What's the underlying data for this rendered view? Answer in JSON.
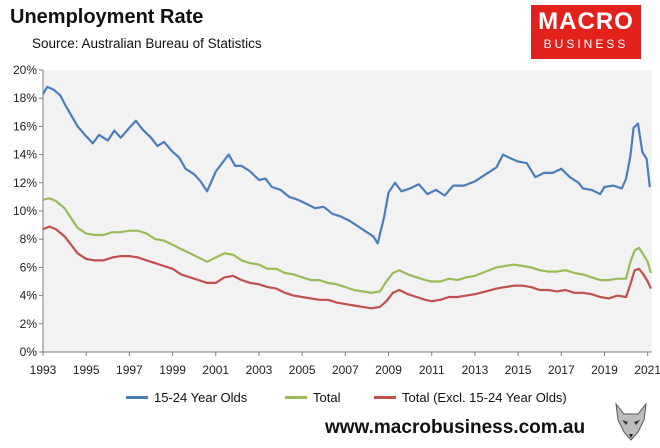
{
  "header": {
    "title": "Unemployment Rate",
    "subtitle": "Source: Australian Bureau of Statistics"
  },
  "logo": {
    "line1": "MACRO",
    "line2": "BUSINESS",
    "color": "#e2211c"
  },
  "footer": {
    "url": "www.macrobusiness.com.au"
  },
  "colors": {
    "plot_bg": "#f2f2f2"
  },
  "chart_data": {
    "type": "line",
    "title": "Unemployment Rate",
    "subtitle": "Source: Australian Bureau of Statistics",
    "xlabel": "",
    "ylabel": "",
    "xlim": [
      1993,
      2021.2
    ],
    "ylim": [
      0,
      20
    ],
    "x_ticks": [
      1993,
      1995,
      1997,
      1999,
      2001,
      2003,
      2005,
      2007,
      2009,
      2011,
      2013,
      2015,
      2017,
      2019,
      2021
    ],
    "y_ticks": [
      0,
      2,
      4,
      6,
      8,
      10,
      12,
      14,
      16,
      18,
      20
    ],
    "y_tick_labels": [
      "0%",
      "2%",
      "4%",
      "6%",
      "8%",
      "10%",
      "12%",
      "14%",
      "16%",
      "18%",
      "20%"
    ],
    "grid": false,
    "legend_position": "bottom",
    "series": [
      {
        "name": "15-24 Year Olds",
        "color": "#4a7ebb",
        "points": [
          [
            1993.0,
            18.3
          ],
          [
            1993.2,
            18.8
          ],
          [
            1993.5,
            18.6
          ],
          [
            1993.8,
            18.2
          ],
          [
            1994.0,
            17.6
          ],
          [
            1994.3,
            16.8
          ],
          [
            1994.6,
            16.0
          ],
          [
            1995.0,
            15.3
          ],
          [
            1995.3,
            14.8
          ],
          [
            1995.6,
            15.4
          ],
          [
            1996.0,
            15.0
          ],
          [
            1996.3,
            15.7
          ],
          [
            1996.6,
            15.2
          ],
          [
            1997.0,
            15.9
          ],
          [
            1997.3,
            16.4
          ],
          [
            1997.6,
            15.8
          ],
          [
            1998.0,
            15.2
          ],
          [
            1998.3,
            14.6
          ],
          [
            1998.6,
            14.9
          ],
          [
            1999.0,
            14.2
          ],
          [
            1999.3,
            13.8
          ],
          [
            1999.6,
            13.0
          ],
          [
            2000.0,
            12.6
          ],
          [
            2000.3,
            12.1
          ],
          [
            2000.6,
            11.4
          ],
          [
            2001.0,
            12.8
          ],
          [
            2001.3,
            13.4
          ],
          [
            2001.6,
            14.0
          ],
          [
            2001.9,
            13.2
          ],
          [
            2002.2,
            13.2
          ],
          [
            2002.6,
            12.8
          ],
          [
            2003.0,
            12.2
          ],
          [
            2003.3,
            12.3
          ],
          [
            2003.6,
            11.7
          ],
          [
            2004.0,
            11.5
          ],
          [
            2004.4,
            11.0
          ],
          [
            2004.8,
            10.8
          ],
          [
            2005.2,
            10.5
          ],
          [
            2005.6,
            10.2
          ],
          [
            2006.0,
            10.3
          ],
          [
            2006.4,
            9.8
          ],
          [
            2006.8,
            9.6
          ],
          [
            2007.2,
            9.3
          ],
          [
            2007.6,
            8.9
          ],
          [
            2008.0,
            8.5
          ],
          [
            2008.3,
            8.2
          ],
          [
            2008.5,
            7.7
          ],
          [
            2008.8,
            9.6
          ],
          [
            2009.0,
            11.3
          ],
          [
            2009.3,
            12.0
          ],
          [
            2009.6,
            11.4
          ],
          [
            2010.0,
            11.6
          ],
          [
            2010.4,
            11.9
          ],
          [
            2010.8,
            11.2
          ],
          [
            2011.2,
            11.5
          ],
          [
            2011.6,
            11.1
          ],
          [
            2012.0,
            11.8
          ],
          [
            2012.5,
            11.8
          ],
          [
            2013.0,
            12.1
          ],
          [
            2013.5,
            12.6
          ],
          [
            2014.0,
            13.1
          ],
          [
            2014.3,
            14.0
          ],
          [
            2014.7,
            13.7
          ],
          [
            2015.0,
            13.5
          ],
          [
            2015.4,
            13.4
          ],
          [
            2015.8,
            12.4
          ],
          [
            2016.2,
            12.7
          ],
          [
            2016.6,
            12.7
          ],
          [
            2017.0,
            13.0
          ],
          [
            2017.4,
            12.4
          ],
          [
            2017.8,
            12.0
          ],
          [
            2018.0,
            11.6
          ],
          [
            2018.4,
            11.5
          ],
          [
            2018.8,
            11.2
          ],
          [
            2019.0,
            11.7
          ],
          [
            2019.4,
            11.8
          ],
          [
            2019.8,
            11.6
          ],
          [
            2020.0,
            12.3
          ],
          [
            2020.2,
            13.9
          ],
          [
            2020.35,
            15.9
          ],
          [
            2020.55,
            16.2
          ],
          [
            2020.75,
            14.2
          ],
          [
            2020.95,
            13.7
          ],
          [
            2021.1,
            11.7
          ]
        ]
      },
      {
        "name": "Total",
        "color": "#9bbb59",
        "points": [
          [
            1993.0,
            10.8
          ],
          [
            1993.3,
            10.9
          ],
          [
            1993.6,
            10.7
          ],
          [
            1994.0,
            10.2
          ],
          [
            1994.3,
            9.5
          ],
          [
            1994.6,
            8.8
          ],
          [
            1995.0,
            8.4
          ],
          [
            1995.4,
            8.3
          ],
          [
            1995.8,
            8.3
          ],
          [
            1996.2,
            8.5
          ],
          [
            1996.6,
            8.5
          ],
          [
            1997.0,
            8.6
          ],
          [
            1997.4,
            8.6
          ],
          [
            1997.8,
            8.4
          ],
          [
            1998.2,
            8.0
          ],
          [
            1998.6,
            7.9
          ],
          [
            1999.0,
            7.6
          ],
          [
            1999.4,
            7.3
          ],
          [
            1999.8,
            7.0
          ],
          [
            2000.2,
            6.7
          ],
          [
            2000.6,
            6.4
          ],
          [
            2001.0,
            6.7
          ],
          [
            2001.4,
            7.0
          ],
          [
            2001.8,
            6.9
          ],
          [
            2002.2,
            6.5
          ],
          [
            2002.6,
            6.3
          ],
          [
            2003.0,
            6.2
          ],
          [
            2003.4,
            5.9
          ],
          [
            2003.8,
            5.9
          ],
          [
            2004.2,
            5.6
          ],
          [
            2004.6,
            5.5
          ],
          [
            2005.0,
            5.3
          ],
          [
            2005.4,
            5.1
          ],
          [
            2005.8,
            5.1
          ],
          [
            2006.2,
            4.9
          ],
          [
            2006.6,
            4.8
          ],
          [
            2007.0,
            4.6
          ],
          [
            2007.4,
            4.4
          ],
          [
            2007.8,
            4.3
          ],
          [
            2008.2,
            4.2
          ],
          [
            2008.6,
            4.3
          ],
          [
            2008.9,
            5.0
          ],
          [
            2009.2,
            5.6
          ],
          [
            2009.5,
            5.8
          ],
          [
            2009.9,
            5.5
          ],
          [
            2010.3,
            5.3
          ],
          [
            2010.7,
            5.1
          ],
          [
            2011.0,
            5.0
          ],
          [
            2011.4,
            5.0
          ],
          [
            2011.8,
            5.2
          ],
          [
            2012.2,
            5.1
          ],
          [
            2012.6,
            5.3
          ],
          [
            2013.0,
            5.4
          ],
          [
            2013.5,
            5.7
          ],
          [
            2014.0,
            6.0
          ],
          [
            2014.4,
            6.1
          ],
          [
            2014.8,
            6.2
          ],
          [
            2015.2,
            6.1
          ],
          [
            2015.6,
            6.0
          ],
          [
            2016.0,
            5.8
          ],
          [
            2016.4,
            5.7
          ],
          [
            2016.8,
            5.7
          ],
          [
            2017.2,
            5.8
          ],
          [
            2017.6,
            5.6
          ],
          [
            2018.0,
            5.5
          ],
          [
            2018.4,
            5.3
          ],
          [
            2018.8,
            5.1
          ],
          [
            2019.2,
            5.1
          ],
          [
            2019.6,
            5.2
          ],
          [
            2020.0,
            5.2
          ],
          [
            2020.2,
            6.4
          ],
          [
            2020.4,
            7.2
          ],
          [
            2020.6,
            7.4
          ],
          [
            2020.8,
            6.9
          ],
          [
            2021.0,
            6.4
          ],
          [
            2021.15,
            5.6
          ]
        ]
      },
      {
        "name": "Total (Excl. 15-24 Year Olds)",
        "color": "#c0504d",
        "points": [
          [
            1993.0,
            8.7
          ],
          [
            1993.3,
            8.9
          ],
          [
            1993.6,
            8.7
          ],
          [
            1994.0,
            8.2
          ],
          [
            1994.3,
            7.6
          ],
          [
            1994.6,
            7.0
          ],
          [
            1995.0,
            6.6
          ],
          [
            1995.4,
            6.5
          ],
          [
            1995.8,
            6.5
          ],
          [
            1996.2,
            6.7
          ],
          [
            1996.6,
            6.8
          ],
          [
            1997.0,
            6.8
          ],
          [
            1997.4,
            6.7
          ],
          [
            1997.8,
            6.5
          ],
          [
            1998.2,
            6.3
          ],
          [
            1998.6,
            6.1
          ],
          [
            1999.0,
            5.9
          ],
          [
            1999.4,
            5.5
          ],
          [
            1999.8,
            5.3
          ],
          [
            2000.2,
            5.1
          ],
          [
            2000.6,
            4.9
          ],
          [
            2001.0,
            4.9
          ],
          [
            2001.4,
            5.3
          ],
          [
            2001.8,
            5.4
          ],
          [
            2002.2,
            5.1
          ],
          [
            2002.6,
            4.9
          ],
          [
            2003.0,
            4.8
          ],
          [
            2003.4,
            4.6
          ],
          [
            2003.8,
            4.5
          ],
          [
            2004.2,
            4.2
          ],
          [
            2004.6,
            4.0
          ],
          [
            2005.0,
            3.9
          ],
          [
            2005.4,
            3.8
          ],
          [
            2005.8,
            3.7
          ],
          [
            2006.2,
            3.7
          ],
          [
            2006.6,
            3.5
          ],
          [
            2007.0,
            3.4
          ],
          [
            2007.4,
            3.3
          ],
          [
            2007.8,
            3.2
          ],
          [
            2008.2,
            3.1
          ],
          [
            2008.6,
            3.2
          ],
          [
            2008.9,
            3.6
          ],
          [
            2009.2,
            4.2
          ],
          [
            2009.5,
            4.4
          ],
          [
            2009.9,
            4.1
          ],
          [
            2010.3,
            3.9
          ],
          [
            2010.7,
            3.7
          ],
          [
            2011.0,
            3.6
          ],
          [
            2011.4,
            3.7
          ],
          [
            2011.8,
            3.9
          ],
          [
            2012.2,
            3.9
          ],
          [
            2012.6,
            4.0
          ],
          [
            2013.0,
            4.1
          ],
          [
            2013.5,
            4.3
          ],
          [
            2014.0,
            4.5
          ],
          [
            2014.4,
            4.6
          ],
          [
            2014.8,
            4.7
          ],
          [
            2015.2,
            4.7
          ],
          [
            2015.6,
            4.6
          ],
          [
            2016.0,
            4.4
          ],
          [
            2016.4,
            4.4
          ],
          [
            2016.8,
            4.3
          ],
          [
            2017.2,
            4.4
          ],
          [
            2017.6,
            4.2
          ],
          [
            2018.0,
            4.2
          ],
          [
            2018.4,
            4.1
          ],
          [
            2018.8,
            3.9
          ],
          [
            2019.2,
            3.8
          ],
          [
            2019.6,
            4.0
          ],
          [
            2020.0,
            3.9
          ],
          [
            2020.2,
            4.8
          ],
          [
            2020.4,
            5.8
          ],
          [
            2020.6,
            5.9
          ],
          [
            2020.8,
            5.5
          ],
          [
            2021.0,
            5.0
          ],
          [
            2021.15,
            4.5
          ]
        ]
      }
    ]
  }
}
